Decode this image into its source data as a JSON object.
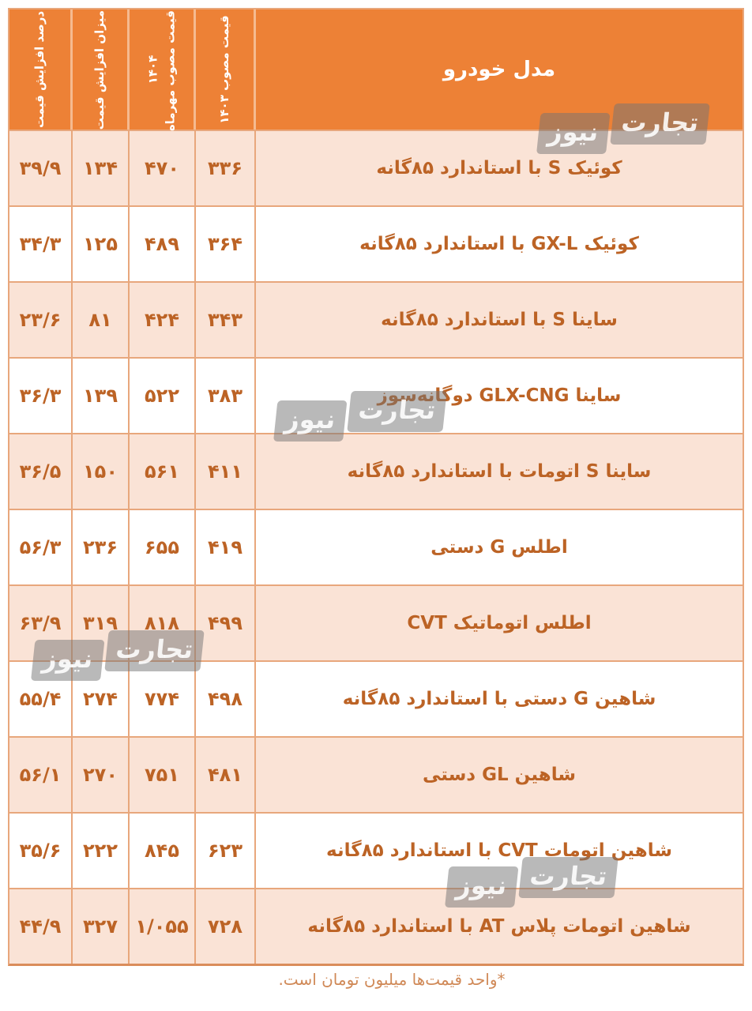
{
  "table": {
    "header": {
      "model": "مدل خودرو",
      "price_1403": "قیمت مصوب ۱۴۰۳",
      "price_mehr_1404_line1": "قیمت مصوب مهرماه",
      "price_mehr_1404_line2": "۱۴۰۴",
      "increase": "میزان افزایش قیمت",
      "percent": "درصد افزایش قیمت"
    },
    "rows": [
      {
        "model": "کوئیک S با استاندارد ۸۵گانه",
        "price_1403": "۳۳۶",
        "price_mehr_1404": "۴۷۰",
        "increase": "۱۳۴",
        "percent": "۳۹/۹"
      },
      {
        "model": "کوئیک GX-L با استاندارد ۸۵گانه",
        "price_1403": "۳۶۴",
        "price_mehr_1404": "۴۸۹",
        "increase": "۱۲۵",
        "percent": "۳۴/۳"
      },
      {
        "model": "ساینا S با استاندارد ۸۵گانه",
        "price_1403": "۳۴۳",
        "price_mehr_1404": "۴۲۴",
        "increase": "۸۱",
        "percent": "۲۳/۶"
      },
      {
        "model": "ساینا GLX-CNG دوگانه‌سوز",
        "price_1403": "۳۸۳",
        "price_mehr_1404": "۵۲۲",
        "increase": "۱۳۹",
        "percent": "۳۶/۳"
      },
      {
        "model": "ساینا S اتومات با استاندارد ۸۵گانه",
        "price_1403": "۴۱۱",
        "price_mehr_1404": "۵۶۱",
        "increase": "۱۵۰",
        "percent": "۳۶/۵"
      },
      {
        "model": "اطلس G دستی",
        "price_1403": "۴۱۹",
        "price_mehr_1404": "۶۵۵",
        "increase": "۲۳۶",
        "percent": "۵۶/۳"
      },
      {
        "model": "اطلس اتوماتیک CVT",
        "price_1403": "۴۹۹",
        "price_mehr_1404": "۸۱۸",
        "increase": "۳۱۹",
        "percent": "۶۳/۹"
      },
      {
        "model": "شاهین G دستی با استاندارد ۸۵گانه",
        "price_1403": "۴۹۸",
        "price_mehr_1404": "۷۷۴",
        "increase": "۲۷۴",
        "percent": "۵۵/۴"
      },
      {
        "model": "شاهین GL دستی",
        "price_1403": "۴۸۱",
        "price_mehr_1404": "۷۵۱",
        "increase": "۲۷۰",
        "percent": "۵۶/۱"
      },
      {
        "model": "شاهین اتومات CVT با استاندارد ۸۵گانه",
        "price_1403": "۶۲۳",
        "price_mehr_1404": "۸۴۵",
        "increase": "۲۲۲",
        "percent": "۳۵/۶"
      },
      {
        "model": "شاهین اتومات پلاس AT با استاندارد ۸۵گانه",
        "price_1403": "۷۲۸",
        "price_mehr_1404": "۱/۰۵۵",
        "increase": "۳۲۷",
        "percent": "۴۴/۹"
      }
    ]
  },
  "footer": {
    "note": "*واحد قیمت‌ها میلیون تومان است."
  },
  "watermark": {
    "part_right": "تجارت",
    "part_left": "نیوز"
  },
  "colors": {
    "header_bg": "#ED8136",
    "row_pink": "#FAE3D6",
    "row_white": "#FFFFFF",
    "cell_border": "#E8A77C",
    "cell_text": "#BC6325",
    "header_text": "#FFFFFF",
    "footnote_text": "#D08957",
    "watermark_bg_rgba": "rgba(115,115,115,0.5)"
  },
  "chart_data": {
    "type": "table",
    "title": "",
    "unit_note": "واحد قیمت‌ها میلیون تومان است",
    "columns": [
      "مدل خودرو",
      "قیمت مصوب ۱۴۰۳",
      "قیمت مصوب مهرماه ۱۴۰۴",
      "میزان افزایش قیمت",
      "درصد افزایش قیمت"
    ],
    "rows": [
      {
        "model": "کوئیک S با استاندارد ۸۵گانه",
        "price_1403": 336,
        "price_mehr_1404": 470,
        "increase": 134,
        "percent_increase": 39.9
      },
      {
        "model": "کوئیک GX-L با استاندارد ۸۵گانه",
        "price_1403": 364,
        "price_mehr_1404": 489,
        "increase": 125,
        "percent_increase": 34.3
      },
      {
        "model": "ساینا S با استاندارد ۸۵گانه",
        "price_1403": 343,
        "price_mehr_1404": 424,
        "increase": 81,
        "percent_increase": 23.6
      },
      {
        "model": "ساینا GLX-CNG دوگانه‌سوز",
        "price_1403": 383,
        "price_mehr_1404": 522,
        "increase": 139,
        "percent_increase": 36.3
      },
      {
        "model": "ساینا S اتومات با استاندارد ۸۵گانه",
        "price_1403": 411,
        "price_mehr_1404": 561,
        "increase": 150,
        "percent_increase": 36.5
      },
      {
        "model": "اطلس G دستی",
        "price_1403": 419,
        "price_mehr_1404": 655,
        "increase": 236,
        "percent_increase": 56.3
      },
      {
        "model": "اطلس اتوماتیک CVT",
        "price_1403": 499,
        "price_mehr_1404": 818,
        "increase": 319,
        "percent_increase": 63.9
      },
      {
        "model": "شاهین G دستی با استاندارد ۸۵گانه",
        "price_1403": 498,
        "price_mehr_1404": 774,
        "increase": 274,
        "percent_increase": 55.4
      },
      {
        "model": "شاهین GL دستی",
        "price_1403": 481,
        "price_mehr_1404": 751,
        "increase": 270,
        "percent_increase": 56.1
      },
      {
        "model": "شاهین اتومات CVT با استاندارد ۸۵گانه",
        "price_1403": 623,
        "price_mehr_1404": 845,
        "increase": 222,
        "percent_increase": 35.6
      },
      {
        "model": "شاهین اتومات پلاس AT با استاندارد ۸۵گانه",
        "price_1403": 728,
        "price_mehr_1404": 1055,
        "increase": 327,
        "percent_increase": 44.9
      }
    ]
  }
}
